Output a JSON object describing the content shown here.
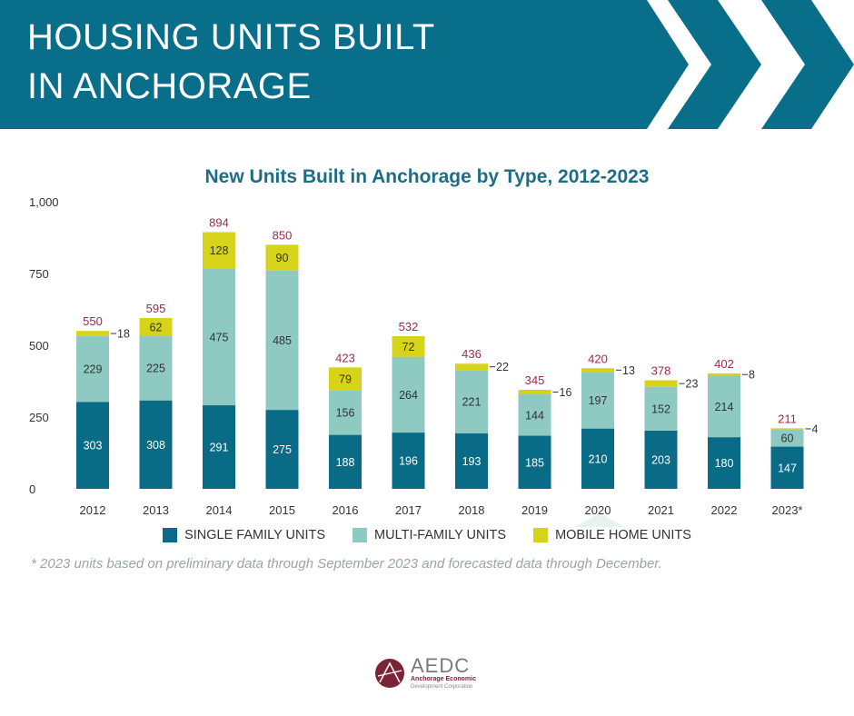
{
  "header": {
    "title_line1": "HOUSING UNITS BUILT",
    "title_line2": "IN ANCHORAGE"
  },
  "colors": {
    "banner": "#086e8a",
    "single": "#0a6b86",
    "multi": "#8ec9c2",
    "mobile": "#d7d21a",
    "total_label": "#9c2a4a",
    "title": "#1d6e84"
  },
  "chart_data": {
    "type": "bar",
    "stacked": true,
    "title": "New Units Built in Anchorage by Type, 2012-2023",
    "categories": [
      "2012",
      "2013",
      "2014",
      "2015",
      "2016",
      "2017",
      "2018",
      "2019",
      "2020",
      "2021",
      "2022",
      "2023*"
    ],
    "series": [
      {
        "name": "SINGLE FAMILY UNITS",
        "values": [
          303,
          308,
          291,
          275,
          188,
          196,
          193,
          185,
          210,
          203,
          180,
          147
        ]
      },
      {
        "name": "MULTI-FAMILY UNITS",
        "values": [
          229,
          225,
          475,
          485,
          156,
          264,
          221,
          144,
          197,
          152,
          214,
          60
        ]
      },
      {
        "name": "MOBILE HOME UNITS",
        "values": [
          18,
          62,
          128,
          90,
          79,
          72,
          22,
          16,
          13,
          23,
          8,
          4
        ]
      }
    ],
    "totals": [
      550,
      595,
      894,
      850,
      423,
      532,
      436,
      345,
      420,
      378,
      402,
      211
    ],
    "ylim": [
      0,
      1000
    ],
    "yticks": [
      0,
      250,
      500,
      750,
      1000
    ],
    "ytick_labels": [
      "0",
      "250",
      "500",
      "750",
      "1,000"
    ],
    "legend_position": "bottom"
  },
  "footnote": "* 2023 units based on preliminary data through September 2023 and forecasted data through December.",
  "logo": {
    "name": "AEDC",
    "sub1": "Anchorage Economic",
    "sub2": "Development Corporation"
  }
}
